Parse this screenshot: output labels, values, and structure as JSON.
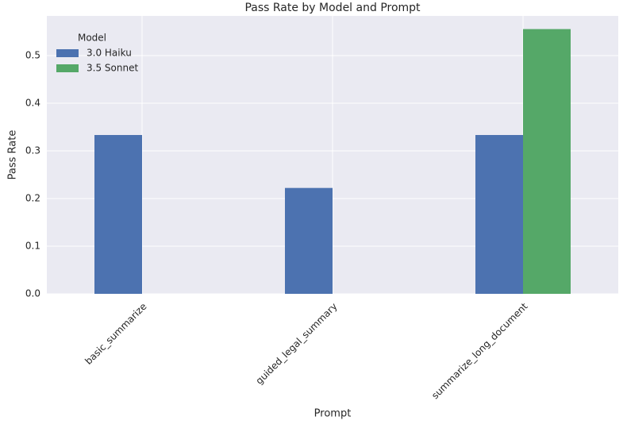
{
  "chart_data": {
    "type": "bar",
    "title": "Pass Rate by Model and Prompt",
    "x_label": "Prompt",
    "y_label": "Pass Rate",
    "categories": [
      "basic_summarize",
      "guided_legal_summary",
      "summarize_long_document"
    ],
    "legend_title": "Model",
    "legend_position": "upper left",
    "series": [
      {
        "name": "3.0 Haiku",
        "color": "#4c72b0",
        "values": [
          0.3333,
          0.2222,
          0.3333
        ]
      },
      {
        "name": "3.5 Sonnet",
        "color": "#55a868",
        "values": [
          null,
          null,
          0.5556
        ]
      }
    ],
    "ylim": [
      0,
      0.5833
    ],
    "yticks": [
      {
        "value": 0,
        "label": "0.0"
      },
      0.1,
      0.2,
      0.3,
      0.4,
      0.5
    ],
    "grid": true
  }
}
